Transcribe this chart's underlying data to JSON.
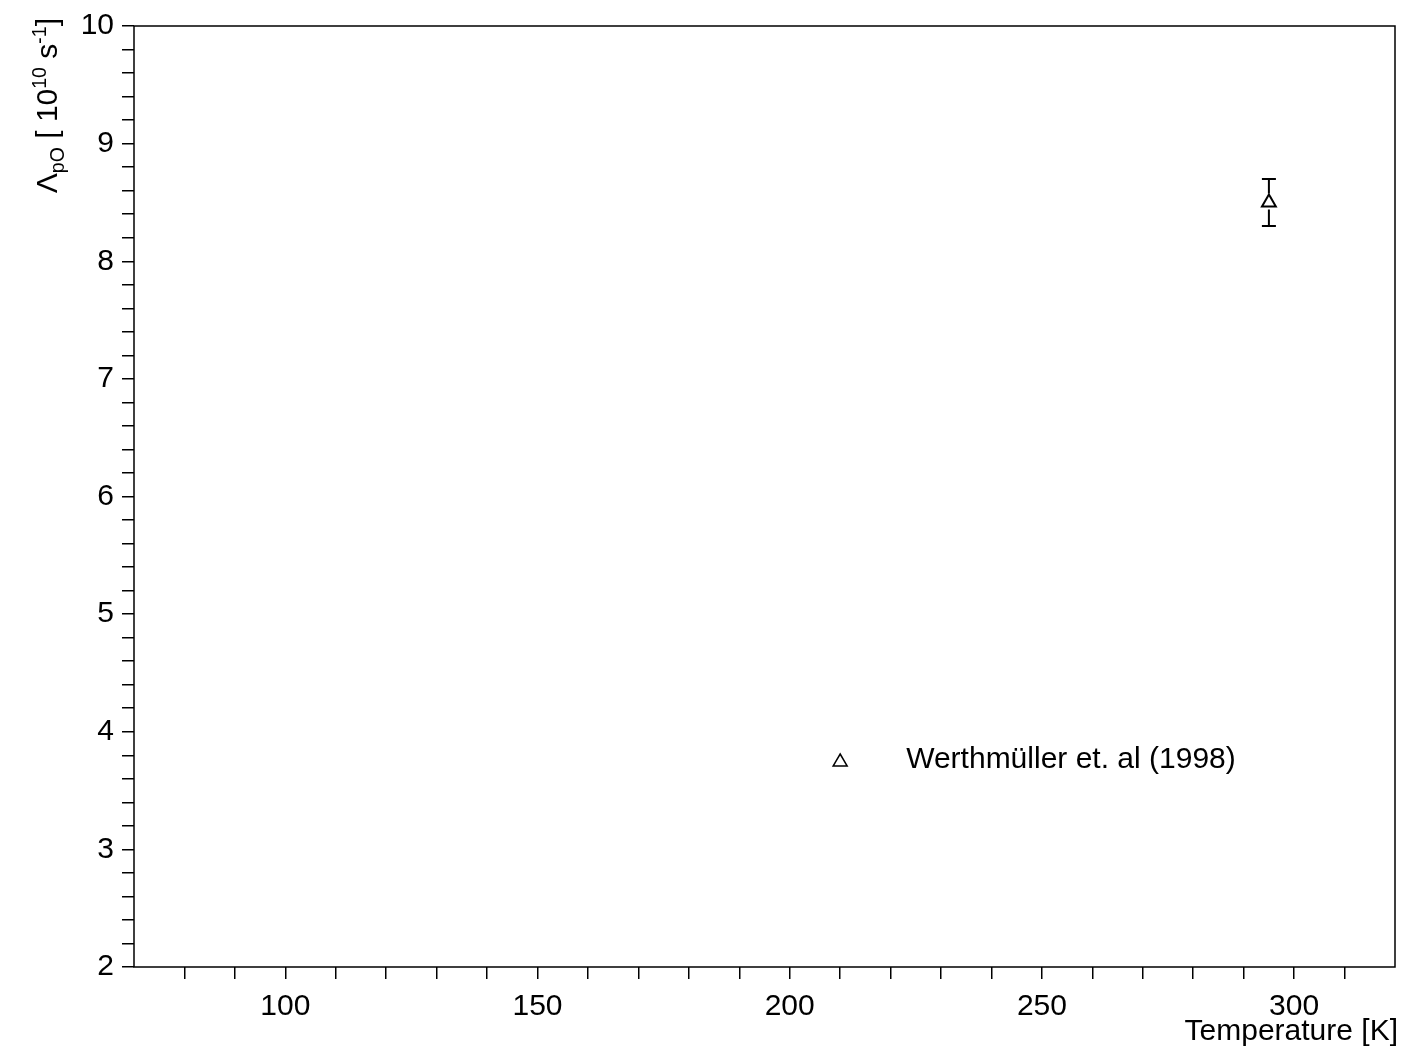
{
  "chart_data": {
    "type": "scatter",
    "xlabel": "Temperature [K]",
    "ylabel": "Λ$_{pO}$ [ 10$^{10}$ s$^{-1}$]",
    "series": [
      {
        "name": "Werthmüller et. al (1998)",
        "color": "#000000",
        "x": [
          295
        ],
        "values": [
          8.5
        ],
        "errors": [
          0.2
        ]
      }
    ],
    "xlim": [
      70,
      320
    ],
    "ylim": [
      2,
      10
    ],
    "xticks": [
      {
        "value": 80,
        "label": null
      },
      {
        "value": 90,
        "label": null
      },
      100,
      {
        "value": 110,
        "label": null
      },
      {
        "value": 120,
        "label": null
      },
      {
        "value": 130,
        "label": null
      },
      {
        "value": 140,
        "label": null
      },
      150,
      {
        "value": 160,
        "label": null
      },
      {
        "value": 170,
        "label": null
      },
      {
        "value": 180,
        "label": null
      },
      {
        "value": 190,
        "label": null
      },
      200,
      {
        "value": 210,
        "label": null
      },
      {
        "value": 220,
        "label": null
      },
      {
        "value": 230,
        "label": null
      },
      {
        "value": 240,
        "label": null
      },
      250,
      {
        "value": 260,
        "label": null
      },
      {
        "value": 270,
        "label": null
      },
      {
        "value": 280,
        "label": null
      },
      {
        "value": 290,
        "label": null
      },
      300,
      {
        "value": 310,
        "label": null
      }
    ],
    "yticks": [
      2,
      {
        "value": 2.2,
        "label": null
      },
      {
        "value": 2.4,
        "label": null
      },
      {
        "value": 2.6,
        "label": null
      },
      {
        "value": 2.8,
        "label": null
      },
      3,
      {
        "value": 3.2,
        "label": null
      },
      {
        "value": 3.4,
        "label": null
      },
      {
        "value": 3.6,
        "label": null
      },
      {
        "value": 3.8,
        "label": null
      },
      4,
      {
        "value": 4.2,
        "label": null
      },
      {
        "value": 4.4,
        "label": null
      },
      {
        "value": 4.6,
        "label": null
      },
      {
        "value": 4.8,
        "label": null
      },
      5,
      {
        "value": 5.2,
        "label": null
      },
      {
        "value": 5.4,
        "label": null
      },
      {
        "value": 5.6,
        "label": null
      },
      {
        "value": 5.8,
        "label": null
      },
      6,
      {
        "value": 6.2,
        "label": null
      },
      {
        "value": 6.4,
        "label": null
      },
      {
        "value": 6.6,
        "label": null
      },
      {
        "value": 6.8,
        "label": null
      },
      7,
      {
        "value": 7.2,
        "label": null
      },
      {
        "value": 7.4,
        "label": null
      },
      {
        "value": 7.6,
        "label": null
      },
      {
        "value": 7.8,
        "label": null
      },
      8,
      {
        "value": 8.2,
        "label": null
      },
      {
        "value": 8.4,
        "label": null
      },
      {
        "value": 8.6,
        "label": null
      },
      {
        "value": 8.8,
        "label": null
      },
      9,
      {
        "value": 9.2,
        "label": null
      },
      {
        "value": 9.4,
        "label": null
      },
      {
        "value": 9.6,
        "label": null
      },
      {
        "value": 9.8,
        "label": null
      },
      10
    ],
    "marker": "triangle",
    "legend": "bottom right",
    "grid": false
  }
}
